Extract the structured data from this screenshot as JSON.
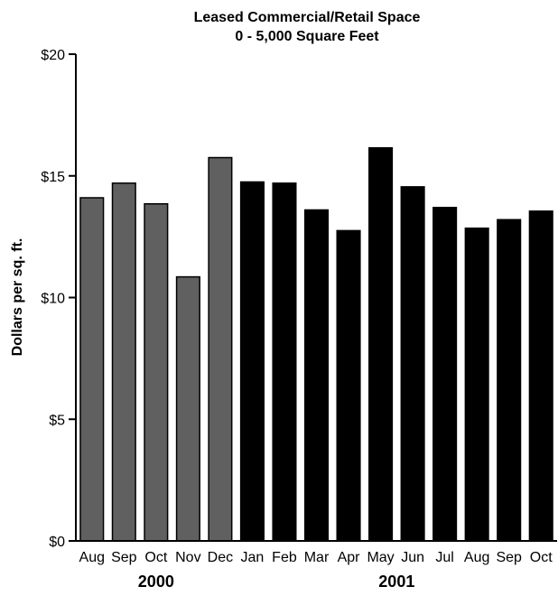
{
  "chart_data": {
    "type": "bar",
    "title": "Leased Commercial/Retail Space",
    "subtitle": "0 - 5,000 Square Feet",
    "ylabel": "Dollars per sq. ft.",
    "xlabel": "",
    "ylim": [
      0,
      20
    ],
    "y_ticks": [
      0,
      5,
      10,
      15,
      20
    ],
    "y_tick_labels": [
      "$0",
      "$5",
      "$10",
      "$15",
      "$20"
    ],
    "grid": false,
    "categories": [
      "Aug",
      "Sep",
      "Oct",
      "Nov",
      "Dec",
      "Jan",
      "Feb",
      "Mar",
      "Apr",
      "May",
      "Jun",
      "Jul",
      "Aug",
      "Sep",
      "Oct"
    ],
    "values": [
      14.1,
      14.7,
      13.85,
      10.85,
      15.75,
      14.75,
      14.7,
      13.6,
      12.75,
      16.15,
      14.55,
      13.7,
      12.85,
      13.2,
      13.55
    ],
    "groups": [
      {
        "label": "2000",
        "start": 0,
        "end": 4,
        "color": "#606060"
      },
      {
        "label": "2001",
        "start": 5,
        "end": 14,
        "color": "#000000"
      }
    ]
  }
}
